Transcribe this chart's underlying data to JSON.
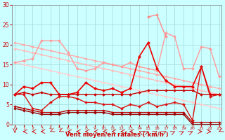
{
  "x": [
    0,
    1,
    2,
    3,
    4,
    5,
    6,
    7,
    8,
    9,
    10,
    11,
    12,
    13,
    14,
    15,
    16,
    17,
    18,
    19,
    20,
    21,
    22,
    23
  ],
  "series": [
    {
      "name": "pink_top_diagonal1",
      "color": "#ffaaaa",
      "lw": 1.0,
      "marker": "D",
      "ms": 1.8,
      "y": [
        20.5,
        20.0,
        19.5,
        19.0,
        18.5,
        18.0,
        17.5,
        17.0,
        16.5,
        16.0,
        15.5,
        15.0,
        14.5,
        14.0,
        13.5,
        13.0,
        12.5,
        12.0,
        11.5,
        11.0,
        10.5,
        10.0,
        9.5,
        9.0
      ]
    },
    {
      "name": "pink_top_diagonal2",
      "color": "#ffbbbb",
      "lw": 1.0,
      "marker": "D",
      "ms": 1.8,
      "y": [
        19.0,
        18.5,
        18.0,
        17.5,
        17.0,
        16.5,
        16.0,
        15.5,
        15.0,
        14.5,
        14.0,
        13.5,
        13.0,
        12.5,
        12.0,
        11.5,
        11.0,
        10.5,
        10.0,
        9.5,
        9.0,
        8.5,
        8.0,
        7.5
      ]
    },
    {
      "name": "pink_lower_diagonal",
      "color": "#ffcccc",
      "lw": 1.0,
      "marker": "D",
      "ms": 1.8,
      "y": [
        15.5,
        15.0,
        14.5,
        14.0,
        13.5,
        13.0,
        12.5,
        12.0,
        11.5,
        11.0,
        10.5,
        10.0,
        9.5,
        9.0,
        8.5,
        8.0,
        7.5,
        7.0,
        6.5,
        6.0,
        5.5,
        5.0,
        4.5,
        4.0
      ]
    },
    {
      "name": "pink_wavy_upper",
      "color": "#ff9999",
      "lw": 1.0,
      "marker": "D",
      "ms": 2.0,
      "y": [
        15.5,
        16.0,
        16.5,
        21.0,
        21.0,
        21.0,
        18.0,
        14.0,
        13.5,
        14.0,
        15.5,
        15.0,
        14.5,
        15.5,
        14.5,
        14.0,
        13.5,
        23.0,
        22.0,
        14.0,
        14.0,
        19.5,
        19.0,
        12.0
      ]
    },
    {
      "name": "pink_rafales_peak",
      "color": "#ff8888",
      "lw": 1.0,
      "marker": "D",
      "ms": 2.0,
      "y": [
        null,
        null,
        null,
        null,
        null,
        null,
        null,
        null,
        null,
        null,
        null,
        null,
        null,
        null,
        null,
        27.0,
        27.5,
        22.0,
        null,
        null,
        null,
        null,
        null,
        null
      ]
    },
    {
      "name": "red_main_upper",
      "color": "#ee0000",
      "lw": 1.2,
      "marker": "D",
      "ms": 2.2,
      "y": [
        7.5,
        9.5,
        9.0,
        10.5,
        10.5,
        7.5,
        7.5,
        8.0,
        10.5,
        9.0,
        8.5,
        9.0,
        8.0,
        9.0,
        17.0,
        20.5,
        14.0,
        11.0,
        9.5,
        9.5,
        9.5,
        14.5,
        7.5,
        7.5
      ]
    },
    {
      "name": "red_mid1",
      "color": "#cc0000",
      "lw": 1.0,
      "marker": "D",
      "ms": 2.0,
      "y": [
        7.5,
        8.0,
        7.5,
        8.0,
        7.5,
        7.5,
        7.5,
        7.5,
        7.5,
        7.5,
        7.5,
        7.5,
        7.5,
        7.5,
        8.0,
        8.5,
        8.5,
        8.5,
        8.5,
        8.5,
        8.5,
        7.5,
        7.5,
        7.5
      ]
    },
    {
      "name": "red_lower_wavy",
      "color": "#dd1111",
      "lw": 1.0,
      "marker": "D",
      "ms": 2.0,
      "y": [
        7.5,
        7.5,
        4.0,
        3.5,
        5.5,
        7.0,
        7.0,
        6.5,
        5.5,
        5.5,
        5.0,
        5.0,
        4.0,
        5.0,
        4.5,
        5.5,
        4.5,
        5.0,
        5.5,
        5.0,
        1.0,
        14.5,
        7.0,
        7.5
      ]
    },
    {
      "name": "darkred_bottom1",
      "color": "#bb0000",
      "lw": 1.0,
      "marker": "D",
      "ms": 1.8,
      "y": [
        4.5,
        4.0,
        3.5,
        3.0,
        3.0,
        3.0,
        3.5,
        3.5,
        3.5,
        3.5,
        3.5,
        3.0,
        3.0,
        3.0,
        3.0,
        3.0,
        3.0,
        3.0,
        3.0,
        3.0,
        0.5,
        0.5,
        0.5,
        0.5
      ]
    },
    {
      "name": "darkred_bottom2",
      "color": "#990000",
      "lw": 1.0,
      "marker": "D",
      "ms": 1.8,
      "y": [
        4.0,
        3.5,
        3.0,
        2.5,
        2.5,
        2.5,
        3.0,
        3.0,
        3.0,
        3.0,
        3.0,
        2.5,
        2.5,
        2.5,
        2.5,
        2.5,
        2.5,
        2.5,
        2.5,
        2.5,
        0.0,
        0.0,
        0.0,
        0.0
      ]
    }
  ],
  "xlabel": "Vent moyen/en rafales ( km/h )",
  "xlim": [
    0,
    23
  ],
  "ylim": [
    0,
    30
  ],
  "yticks": [
    0,
    5,
    10,
    15,
    20,
    25,
    30
  ],
  "xticks": [
    0,
    1,
    2,
    3,
    4,
    5,
    6,
    7,
    8,
    9,
    10,
    11,
    12,
    13,
    14,
    15,
    16,
    17,
    18,
    19,
    20,
    21,
    22,
    23
  ],
  "bg_color": "#ccffff",
  "grid_color": "#aadddd",
  "tick_color": "#cc0000",
  "label_color": "#cc0000"
}
